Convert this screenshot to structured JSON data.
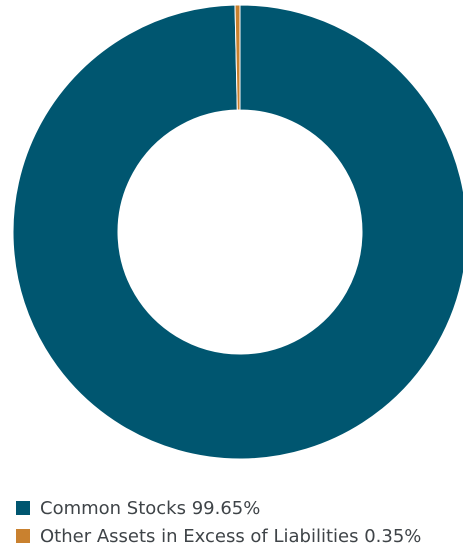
{
  "chart_data": {
    "type": "pie",
    "donut": true,
    "categories": [
      "Common Stocks",
      "Other Assets in Excess of Liabilities"
    ],
    "values": [
      99.65,
      0.35
    ],
    "colors": [
      "#005670",
      "#c9812f"
    ],
    "legend_placement": "bottom-left"
  },
  "legend": {
    "items": [
      {
        "label": "Common Stocks 99.65%",
        "color": "#005670"
      },
      {
        "label": "Other Assets in Excess of Liabilities 0.35%",
        "color": "#c9812f"
      }
    ]
  }
}
